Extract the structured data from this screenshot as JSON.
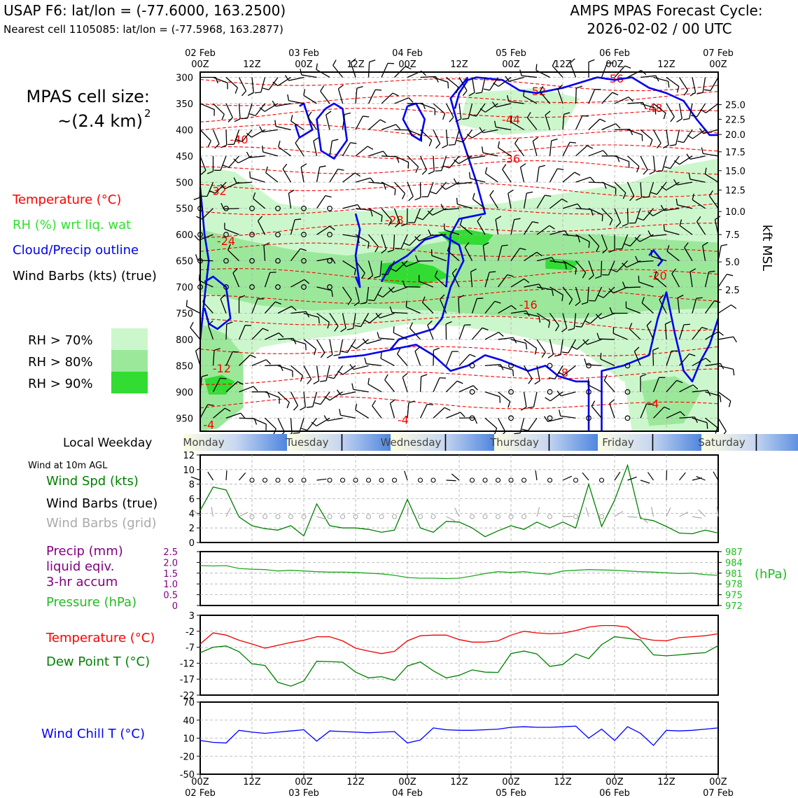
{
  "header": {
    "title_left": "USAP F6: lat/lon = (-77.6000, 163.2500)",
    "subtitle_left": "Nearest cell 1105085: lat/lon = (-77.5968, 163.2877)",
    "title_right_1": "AMPS MPAS Forecast Cycle:",
    "title_right_2": "2026-02-02 / 00 UTC"
  },
  "cell_size": {
    "line1": "MPAS cell size:",
    "line2": "~(2.4 km)",
    "sup": "2"
  },
  "legend": {
    "temperature": "Temperature (°C)",
    "rh": "RH (%) wrt liq. wat",
    "cloud": "Cloud/Precip outline",
    "wind": "Wind Barbs (kts) (true)",
    "rh70": "RH > 70%",
    "rh80": "RH > 80%",
    "rh90": "RH > 90%"
  },
  "colors": {
    "rh70": "#ccf7cc",
    "rh80": "#9be89b",
    "rh90": "#32dc32",
    "temp": "#ff0000",
    "cloud": "#0000ee",
    "dew": "#008000",
    "chill": "#0000ff",
    "pressure": "#22bb22",
    "precip": "#800080",
    "grid_barb": "#aaaaaa"
  },
  "time_axis": {
    "day_labels": [
      {
        "date": "02 Feb",
        "hour": "00Z"
      },
      {
        "date": "",
        "hour": "12Z"
      },
      {
        "date": "03 Feb",
        "hour": "00Z"
      },
      {
        "date": "",
        "hour": "12Z"
      },
      {
        "date": "04 Feb",
        "hour": "00Z"
      },
      {
        "date": "",
        "hour": "12Z"
      },
      {
        "date": "05 Feb",
        "hour": "00Z"
      },
      {
        "date": "",
        "hour": "12Z"
      },
      {
        "date": "06 Feb",
        "hour": "00Z"
      },
      {
        "date": "",
        "hour": "12Z"
      },
      {
        "date": "07 Feb",
        "hour": "00Z"
      }
    ],
    "weekday_title": "Local Weekday",
    "weekdays": [
      "Monday",
      "Tuesday",
      "Wednesday",
      "Thursday",
      "Friday",
      "Saturday"
    ]
  },
  "chart_data": [
    {
      "type": "heatmap",
      "name": "time-height cross section",
      "x_hours": [
        0,
        120
      ],
      "y_pressure_hPa": [
        975,
        290
      ],
      "y_ticks": [
        300,
        350,
        400,
        450,
        500,
        550,
        600,
        650,
        700,
        750,
        800,
        850,
        900,
        950
      ],
      "y2_label": "kft MSL",
      "y2_ticks": [
        {
          "value": "25.0",
          "p": 352
        },
        {
          "value": "22.5",
          "p": 380
        },
        {
          "value": "20.0",
          "p": 409
        },
        {
          "value": "17.5",
          "p": 442
        },
        {
          "value": "15.0",
          "p": 478
        },
        {
          "value": "12.5",
          "p": 515
        },
        {
          "value": "10.0",
          "p": 556
        },
        {
          "value": "7.5",
          "p": 600
        },
        {
          "value": "5.0",
          "p": 652
        },
        {
          "value": "2.5",
          "p": 705
        }
      ],
      "isotherm_labels": [
        {
          "text": "-56",
          "h": 96,
          "p": 302
        },
        {
          "text": "-52",
          "h": 78,
          "p": 326
        },
        {
          "text": "-48",
          "h": 105,
          "p": 358
        },
        {
          "text": "-44",
          "h": 72,
          "p": 380
        },
        {
          "text": "-40",
          "h": 9,
          "p": 418
        },
        {
          "text": "-36",
          "h": 72,
          "p": 455
        },
        {
          "text": "-32",
          "h": 4,
          "p": 516
        },
        {
          "text": "-28",
          "h": 45,
          "p": 572
        },
        {
          "text": "-24",
          "h": 6,
          "p": 612
        },
        {
          "text": "-20",
          "h": 106,
          "p": 678
        },
        {
          "text": "-16",
          "h": 76,
          "p": 733
        },
        {
          "text": "-12",
          "h": 5,
          "p": 855
        },
        {
          "text": "-8",
          "h": 84,
          "p": 863
        },
        {
          "text": "-4",
          "h": 2,
          "p": 962
        },
        {
          "text": "-4",
          "h": 47,
          "p": 953
        },
        {
          "text": "-4",
          "h": 105,
          "p": 922
        }
      ]
    },
    {
      "type": "line",
      "name": "10m wind",
      "title": "Wind at 10m AGL",
      "series_labels": [
        "Wind Spd (kts)",
        "Wind Barbs (true)",
        "Wind Barbs (grid)"
      ],
      "ylim": [
        0,
        12
      ],
      "y_ticks": [
        0,
        2,
        4,
        6,
        8,
        10,
        12
      ],
      "x": [
        0,
        3,
        6,
        9,
        12,
        15,
        18,
        21,
        24,
        27,
        30,
        33,
        36,
        39,
        42,
        45,
        48,
        51,
        54,
        57,
        60,
        63,
        66,
        69,
        72,
        75,
        78,
        81,
        84,
        87,
        90,
        93,
        96,
        99,
        102,
        105,
        108,
        111,
        114,
        117,
        120
      ],
      "series": [
        {
          "name": "Wind Spd (kts)",
          "values": [
            4.4,
            7.6,
            7.2,
            3.5,
            2.3,
            1.9,
            1.7,
            2.3,
            0.9,
            5.3,
            2.3,
            2.0,
            2.0,
            1.8,
            1.4,
            1.7,
            5.9,
            2.0,
            1.4,
            2.9,
            2.8,
            2.0,
            0.8,
            1.6,
            2.3,
            1.8,
            2.8,
            2.0,
            2.8,
            2.0,
            8.0,
            2.2,
            5.8,
            10.6,
            3.3,
            3.0,
            2.2,
            1.3,
            1.2,
            1.7,
            1.3
          ]
        }
      ]
    },
    {
      "type": "line",
      "name": "precip and pressure",
      "series_labels": [
        "Precip (mm)",
        "liquid eqiv.",
        "3-hr accum",
        "Pressure (hPa)"
      ],
      "y_left": [
        0,
        2.5
      ],
      "y_left_ticks": [
        "2.5",
        "2.0",
        "1.5",
        "1.0",
        "0.5",
        "0"
      ],
      "y_right": [
        972,
        987
      ],
      "y_right_ticks": [
        "987",
        "984",
        "981",
        "978",
        "975",
        "972"
      ],
      "y_right_label": "(hPa)",
      "x": [
        0,
        3,
        6,
        9,
        12,
        15,
        18,
        21,
        24,
        27,
        30,
        33,
        36,
        39,
        42,
        45,
        48,
        51,
        54,
        57,
        60,
        63,
        66,
        69,
        72,
        75,
        78,
        81,
        84,
        87,
        90,
        93,
        96,
        99,
        102,
        105,
        108,
        111,
        114,
        117,
        120
      ],
      "series": [
        {
          "name": "Pressure (hPa)",
          "values": [
            983.1,
            983.0,
            983.1,
            982.3,
            982.1,
            982.0,
            981.6,
            981.8,
            981.6,
            981.4,
            981.3,
            981.3,
            981.2,
            981.0,
            980.8,
            980.4,
            979.8,
            979.6,
            979.6,
            979.5,
            979.6,
            980.2,
            980.9,
            981.4,
            981.2,
            981.4,
            981.0,
            980.7,
            981.6,
            981.8,
            982.0,
            981.9,
            981.8,
            981.6,
            981.4,
            981.3,
            981.1,
            980.9,
            981.0,
            980.6,
            980.4
          ]
        }
      ]
    },
    {
      "type": "line",
      "name": "temperature and dew point",
      "series_labels": [
        "Temperature (°C)",
        "Dew Point T (°C)"
      ],
      "ylim": [
        -22,
        3
      ],
      "y_ticks": [
        3,
        -2,
        -7,
        -12,
        -17,
        -22
      ],
      "x": [
        0,
        3,
        6,
        9,
        12,
        15,
        18,
        21,
        24,
        27,
        30,
        33,
        36,
        39,
        42,
        45,
        48,
        51,
        54,
        57,
        60,
        63,
        66,
        69,
        72,
        75,
        78,
        81,
        84,
        87,
        90,
        93,
        96,
        99,
        102,
        105,
        108,
        111,
        114,
        117,
        120
      ],
      "series": [
        {
          "name": "Temperature (°C)",
          "values": [
            -6,
            -2.5,
            -3.2,
            -4.8,
            -6.0,
            -7.3,
            -6.4,
            -5.5,
            -4.8,
            -3.7,
            -3.7,
            -5.0,
            -7.3,
            -8.2,
            -9.0,
            -8.3,
            -5.0,
            -3.4,
            -3.2,
            -3.2,
            -4.6,
            -5.4,
            -5.4,
            -5.0,
            -3.2,
            -2.0,
            -2.5,
            -2.8,
            -2.6,
            -1.8,
            -0.7,
            -0.2,
            -0.2,
            -0.7,
            -4.1,
            -4.8,
            -5.0,
            -4.0,
            -3.7,
            -3.4,
            -2.8
          ]
        },
        {
          "name": "Dew Point T (°C)",
          "values": [
            -8.7,
            -7.0,
            -6.6,
            -8.4,
            -12.2,
            -12.7,
            -18.0,
            -19.2,
            -17.6,
            -11.4,
            -11.5,
            -11.7,
            -14.8,
            -16.6,
            -16.2,
            -17.4,
            -12.9,
            -11.6,
            -14.4,
            -16.6,
            -15.8,
            -14.1,
            -14.8,
            -14.9,
            -9.0,
            -8.2,
            -9.1,
            -13.0,
            -12.4,
            -9.1,
            -10.6,
            -6.2,
            -3.7,
            -4.2,
            -4.7,
            -9.4,
            -9.7,
            -9.4,
            -9.0,
            -8.7,
            -6.5
          ]
        }
      ]
    },
    {
      "type": "line",
      "name": "wind chill",
      "series_labels": [
        "Wind Chill T (°C)"
      ],
      "ylim": [
        -50,
        70
      ],
      "y_ticks": [
        70,
        40,
        10,
        -20,
        -50
      ],
      "x": [
        0,
        3,
        6,
        9,
        12,
        15,
        18,
        21,
        24,
        27,
        30,
        33,
        36,
        39,
        42,
        45,
        48,
        51,
        54,
        57,
        60,
        63,
        66,
        69,
        72,
        75,
        78,
        81,
        84,
        87,
        90,
        93,
        96,
        99,
        102,
        105,
        108,
        111,
        114,
        117,
        120
      ],
      "series": [
        {
          "name": "Wind Chill T (°C)",
          "values": [
            6,
            3,
            2,
            23,
            20,
            18,
            20,
            22,
            24,
            5,
            22,
            21,
            20,
            19,
            20,
            21,
            2,
            7,
            27,
            24,
            23,
            23,
            24,
            25,
            28,
            29,
            28,
            28,
            29,
            30,
            10,
            25,
            6,
            29,
            18,
            -2,
            23,
            22,
            23,
            25,
            27
          ]
        }
      ]
    }
  ]
}
